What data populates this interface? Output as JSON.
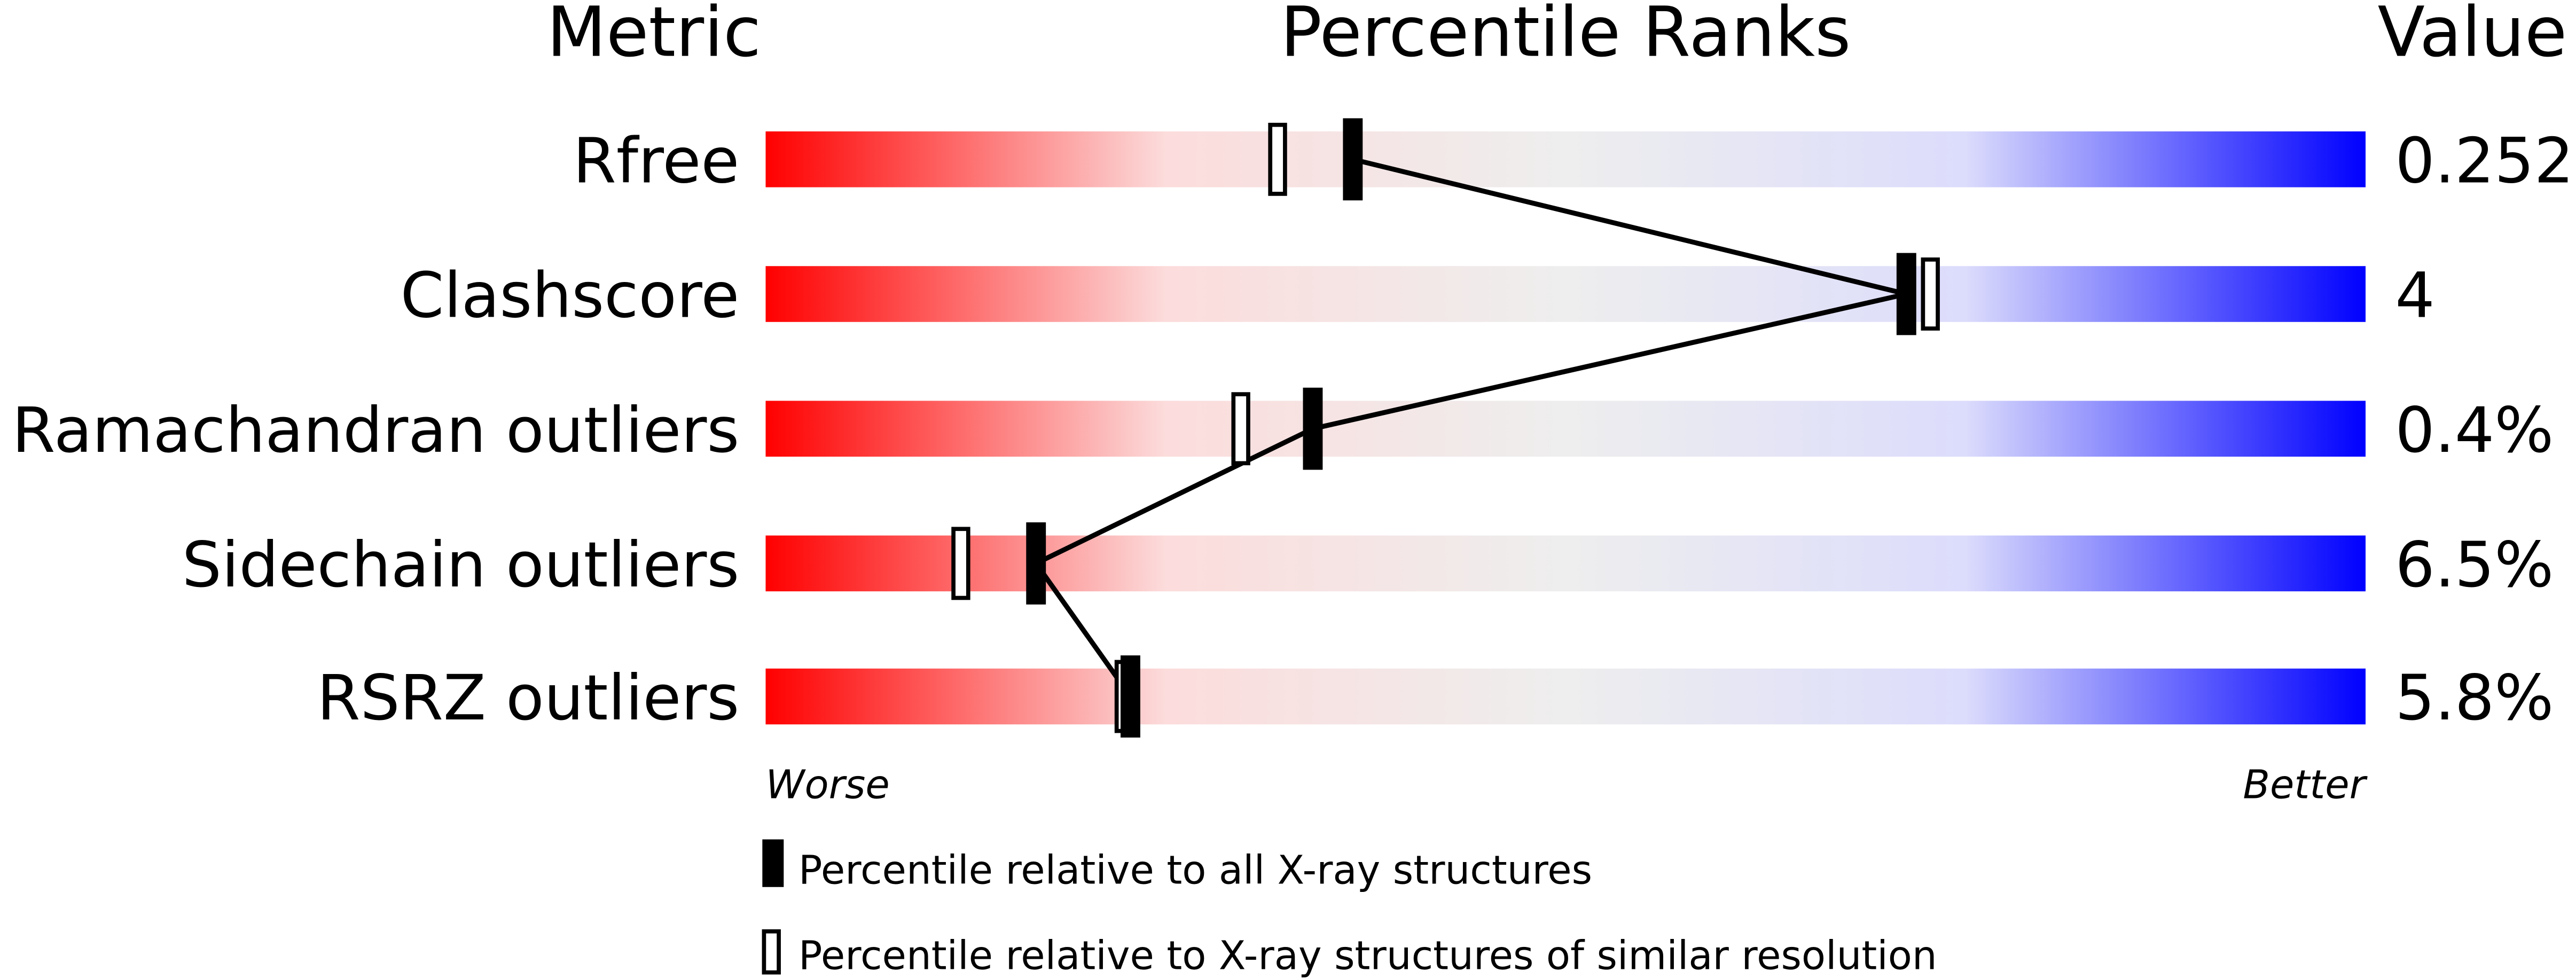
{
  "chart_data": {
    "type": "percentile-slider",
    "headers": {
      "metric": "Metric",
      "ranks": "Percentile Ranks",
      "value": "Value"
    },
    "xlim": [
      0,
      100
    ],
    "axis_labels": {
      "left": "Worse",
      "right": "Better"
    },
    "gradient_colors": [
      "#ff0000",
      "#fcdcdc",
      "#eeeeee",
      "#dcdcfc",
      "#0000ff"
    ],
    "rows": [
      {
        "metric": "Rfree",
        "value": "0.252",
        "percentile_all": 36.7,
        "percentile_similar": 32.0
      },
      {
        "metric": "Clashscore",
        "value": "4",
        "percentile_all": 71.3,
        "percentile_similar": 72.8
      },
      {
        "metric": "Ramachandran outliers",
        "value": "0.4%",
        "percentile_all": 34.2,
        "percentile_similar": 29.7
      },
      {
        "metric": "Sidechain outliers",
        "value": "6.5%",
        "percentile_all": 16.9,
        "percentile_similar": 12.2
      },
      {
        "metric": "RSRZ outliers",
        "value": "5.8%",
        "percentile_all": 22.8,
        "percentile_similar": 22.4
      }
    ],
    "legend": [
      {
        "marker": "filled",
        "label": "Percentile relative to all X-ray structures"
      },
      {
        "marker": "open",
        "label": "Percentile relative to X-ray structures of similar resolution"
      }
    ]
  }
}
